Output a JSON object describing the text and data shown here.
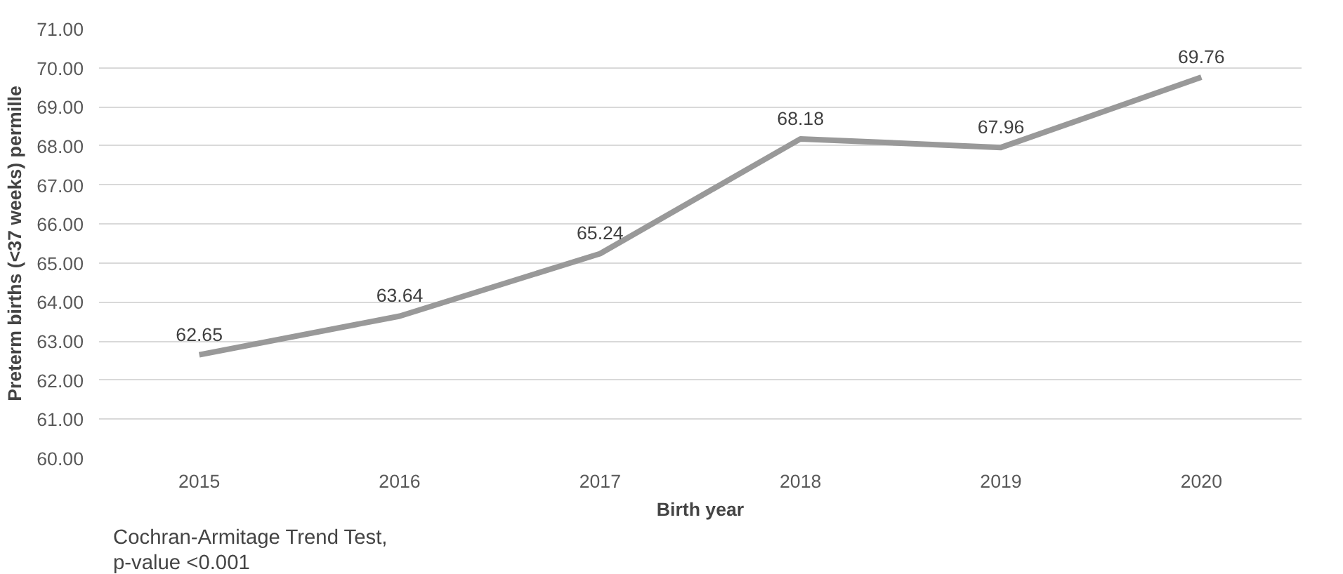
{
  "chart_data": {
    "type": "line",
    "xlabel": "Birth year",
    "ylabel": "Preterm births (<37 weeks) permille",
    "categories": [
      "2015",
      "2016",
      "2017",
      "2018",
      "2019",
      "2020"
    ],
    "series": [
      {
        "color": "#999999",
        "values": [
          62.65,
          63.64,
          65.24,
          68.18,
          67.96,
          69.76
        ]
      }
    ],
    "ylim": [
      60,
      71
    ],
    "yticks": [
      {
        "value": 60,
        "label": "60.00"
      },
      {
        "value": 61,
        "label": "61.00"
      },
      {
        "value": 62,
        "label": "62.00"
      },
      {
        "value": 63,
        "label": "63.00"
      },
      {
        "value": 64,
        "label": "64.00"
      },
      {
        "value": 65,
        "label": "65.00"
      },
      {
        "value": 66,
        "label": "66.00"
      },
      {
        "value": 67,
        "label": "67.00"
      },
      {
        "value": 68,
        "label": "68.00"
      },
      {
        "value": 69,
        "label": "69.00"
      },
      {
        "value": 70,
        "label": "70.00"
      },
      {
        "value": 71,
        "label": "71.00"
      }
    ],
    "grid": "y",
    "data_labels": true,
    "marker": "none",
    "line_style": "solid",
    "annotations": [
      "Cochran-Armitage Trend Test,",
      " p-value <0.001"
    ]
  }
}
